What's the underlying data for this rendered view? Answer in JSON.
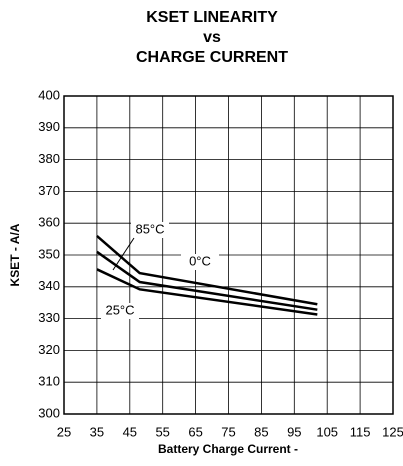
{
  "chart_data": {
    "type": "line",
    "title": "KSET LINEARITY",
    "subtitle": [
      "vs",
      "CHARGE CURRENT"
    ],
    "x_label": "Battery Charge Current -",
    "y_label": "KSET - A/A",
    "x": [
      35,
      48,
      102
    ],
    "series": [
      {
        "name": "85°C",
        "color": "#000000",
        "values": [
          356,
          344.3,
          334.5
        ]
      },
      {
        "name": "0°C",
        "color": "#000000",
        "values": [
          351,
          341.5,
          332.8
        ]
      },
      {
        "name": "25°C",
        "color": "#000000",
        "values": [
          345.5,
          339.2,
          331.3
        ]
      }
    ],
    "xlim": [
      25,
      125
    ],
    "xticks": [
      25,
      35,
      45,
      55,
      65,
      75,
      85,
      95,
      105,
      115,
      125
    ],
    "ylim": [
      300,
      400
    ],
    "yticks": [
      300,
      310,
      320,
      330,
      340,
      350,
      360,
      370,
      380,
      390,
      400
    ],
    "grid": true
  }
}
